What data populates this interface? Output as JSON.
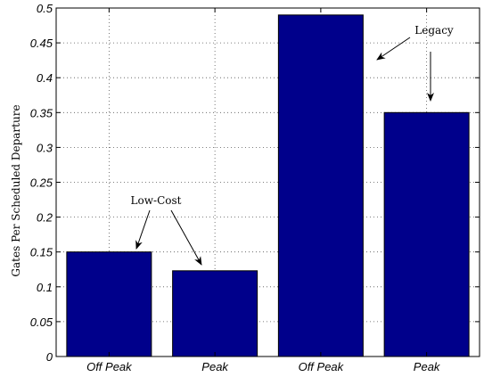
{
  "chart_data": {
    "type": "bar",
    "categories": [
      "Off Peak",
      "Peak",
      "Off Peak",
      "Peak"
    ],
    "values": [
      0.15,
      0.123,
      0.49,
      0.35
    ],
    "title": "",
    "xlabel": "",
    "ylabel": "Gates Per Scheduled Departure",
    "ylim": [
      0,
      0.5
    ],
    "yticks": [
      0,
      0.05,
      0.1,
      0.15,
      0.2,
      0.25,
      0.3,
      0.35,
      0.4,
      0.45,
      0.5
    ],
    "ytick_labels": [
      "0",
      "0.05",
      "0.1",
      "0.15",
      "0.2",
      "0.25",
      "0.3",
      "0.35",
      "0.4",
      "0.45",
      "0.5"
    ],
    "grid": true,
    "bar_color": "#00008b",
    "annotations": [
      {
        "text": "Low-Cost",
        "points_to": [
          0,
          1
        ]
      },
      {
        "text": "Legacy",
        "points_to": [
          2,
          3
        ]
      }
    ]
  }
}
